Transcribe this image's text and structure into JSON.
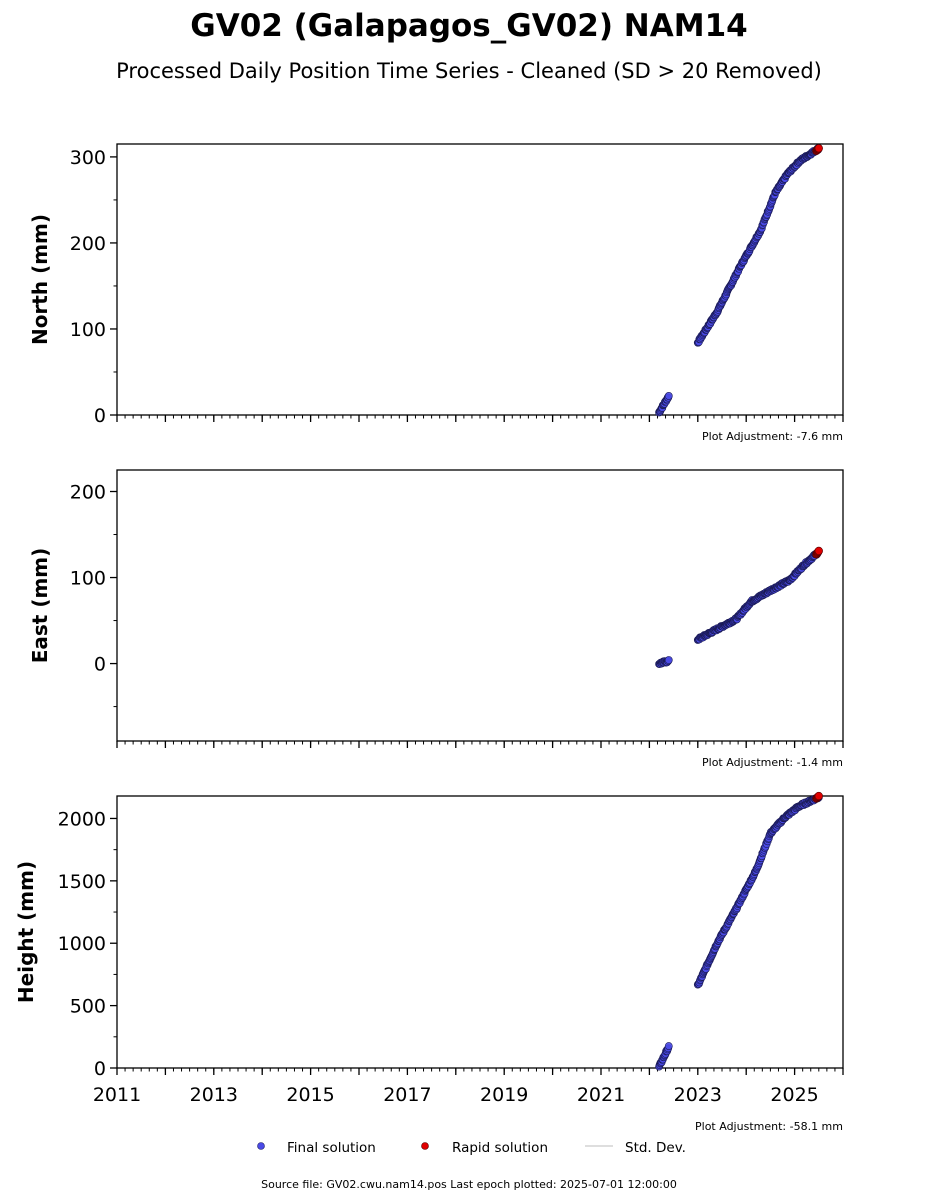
{
  "title": "GV02 (Galapagos_GV02) NAM14",
  "subtitle": "Processed Daily Position Time Series - Cleaned (SD > 20 Removed)",
  "legend": {
    "final_label": "Final solution",
    "rapid_label": "Rapid solution",
    "std_label": "Std. Dev."
  },
  "colors": {
    "final": "#4a4ae6",
    "rapid": "#e00000",
    "std": "#d3d3d3"
  },
  "source_text": "Source file: GV02.cwu.nam14.pos  Last epoch plotted: 2025-07-01 12:00:00",
  "chart_data": [
    {
      "type": "scatter",
      "ylabel": "North (mm)",
      "xlim": [
        2011.0,
        2026.0
      ],
      "ylim": [
        0,
        315
      ],
      "yticks": [
        0,
        100,
        200,
        300
      ],
      "ytick_labels": [
        "0",
        "100",
        "200",
        "300"
      ],
      "xticks": [
        2011,
        2013,
        2015,
        2017,
        2019,
        2021,
        2023,
        2025
      ],
      "xtick_labels": [],
      "adjustment": "Plot Adjustment: -7.6 mm",
      "segments": [
        {
          "x0": 2022.2,
          "x1": 2022.4,
          "y0": 3,
          "y1": 22,
          "cx": [],
          "cy": []
        },
        {
          "x0": 2023.0,
          "x1": 2025.5,
          "y0": 84,
          "y1": 310,
          "cx": [
            2023.0,
            2023.4,
            2023.9,
            2024.3,
            2024.6,
            2024.85,
            2025.1,
            2025.5
          ],
          "cy": [
            84,
            120,
            175,
            215,
            258,
            280,
            295,
            310
          ]
        }
      ],
      "rapid": {
        "x0": 2025.45,
        "x1": 2025.5,
        "y0": 307,
        "y1": 310
      }
    },
    {
      "type": "scatter",
      "ylabel": "East (mm)",
      "xlim": [
        2011.0,
        2026.0
      ],
      "ylim": [
        -90,
        225
      ],
      "yticks": [
        0,
        100,
        200
      ],
      "ytick_labels": [
        "0",
        "100",
        "200"
      ],
      "xticks": [
        2011,
        2013,
        2015,
        2017,
        2019,
        2021,
        2023,
        2025
      ],
      "xtick_labels": [],
      "adjustment": "Plot Adjustment: -1.4 mm",
      "segments": [
        {
          "x0": 2022.2,
          "x1": 2022.4,
          "y0": 0,
          "y1": 3,
          "cx": [],
          "cy": []
        },
        {
          "x0": 2023.0,
          "x1": 2025.5,
          "y0": 28,
          "y1": 130,
          "cx": [
            2023.0,
            2023.4,
            2023.8,
            2024.1,
            2024.5,
            2024.9,
            2025.2,
            2025.5
          ],
          "cy": [
            28,
            40,
            52,
            72,
            85,
            97,
            115,
            130
          ]
        }
      ],
      "rapid": {
        "x0": 2025.45,
        "x1": 2025.5,
        "y0": 127,
        "y1": 131
      }
    },
    {
      "type": "scatter",
      "ylabel": "Height (mm)",
      "xlim": [
        2011.0,
        2026.0
      ],
      "ylim": [
        0,
        2180
      ],
      "yticks": [
        0,
        500,
        1000,
        1500,
        2000
      ],
      "ytick_labels": [
        "0",
        "500",
        "1000",
        "1500",
        "2000"
      ],
      "xticks": [
        2011,
        2013,
        2015,
        2017,
        2019,
        2021,
        2023,
        2025
      ],
      "xtick_labels": [
        "2011",
        "2013",
        "2015",
        "2017",
        "2019",
        "2021",
        "2023",
        "2025"
      ],
      "adjustment": "Plot Adjustment: -58.1 mm",
      "segments": [
        {
          "x0": 2022.2,
          "x1": 2022.4,
          "y0": 10,
          "y1": 170,
          "cx": [],
          "cy": []
        },
        {
          "x0": 2023.0,
          "x1": 2025.5,
          "y0": 660,
          "y1": 2170,
          "cx": [
            2023.0,
            2023.4,
            2023.8,
            2024.2,
            2024.5,
            2024.8,
            2025.1,
            2025.5
          ],
          "cy": [
            660,
            1000,
            1280,
            1580,
            1880,
            2010,
            2100,
            2170
          ]
        }
      ],
      "rapid": {
        "x0": 2025.45,
        "x1": 2025.5,
        "y0": 2160,
        "y1": 2180
      }
    }
  ]
}
